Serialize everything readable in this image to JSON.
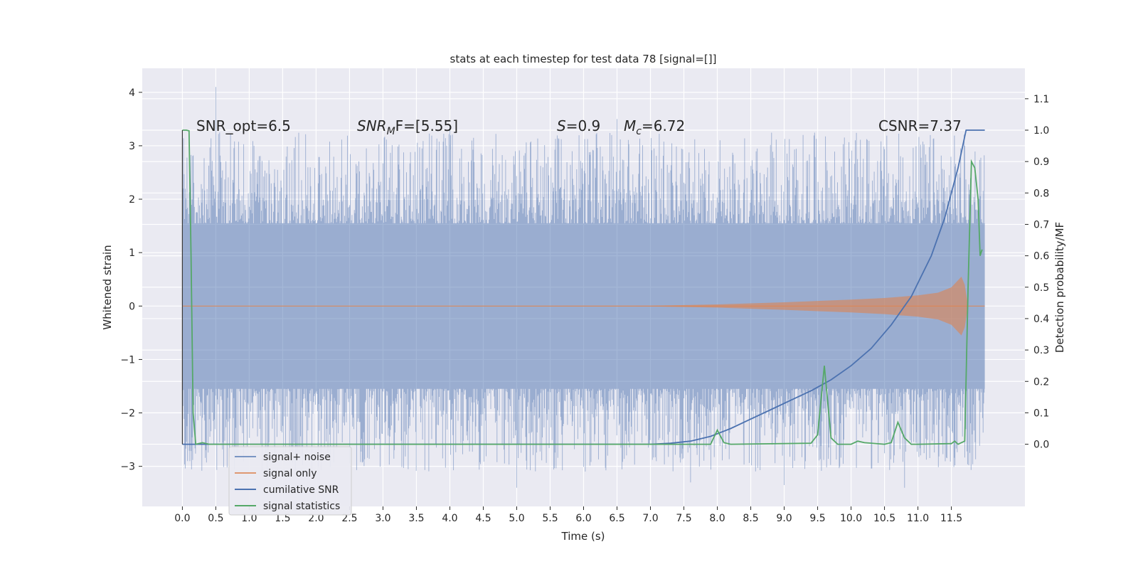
{
  "chart_data": {
    "type": "line",
    "title": "stats at each timestep for test data 78 [signal=[]]",
    "xlabel": "Time (s)",
    "ylabel_left": "Whitened strain",
    "ylabel_right": "Detection probability/MF",
    "xlim": [
      -0.6,
      12.6
    ],
    "ylim_left": [
      -3.75,
      4.45
    ],
    "ylim_right": [
      -0.198,
      1.197
    ],
    "xticks": [
      "0.0",
      "0.5",
      "1.0",
      "1.5",
      "2.0",
      "2.5",
      "3.0",
      "3.5",
      "4.0",
      "4.5",
      "5.0",
      "5.5",
      "6.0",
      "6.5",
      "7.0",
      "7.5",
      "8.0",
      "8.5",
      "9.0",
      "9.5",
      "10.0",
      "10.5",
      "11.0",
      "11.5"
    ],
    "yticks_left": [
      "4",
      "3",
      "2",
      "1",
      "0",
      "−1",
      "−2",
      "−3"
    ],
    "yticks_right": [
      "1.1",
      "1.0",
      "0.9",
      "0.8",
      "0.7",
      "0.6",
      "0.5",
      "0.4",
      "0.3",
      "0.2",
      "0.1",
      "0.0"
    ],
    "grid": true,
    "legend_position": "lower-left",
    "annotations": {
      "snr_opt": "SNR_opt=6.5",
      "snr_mf_main": "SNR",
      "snr_mf_sub": "M",
      "snr_mf_rest": "F=[5.55]",
      "s_main": "S",
      "s_rest": "=0.9",
      "mc_main": "M",
      "mc_sub": "c",
      "mc_rest": "=6.72",
      "csnr": "CSNR=7.37"
    },
    "series": [
      {
        "name": "signal+ noise",
        "axis": "left",
        "color": "#4c72b0",
        "opacity": 0.5,
        "x_range": [
          0.0,
          12.0
        ],
        "band_lower": -1.55,
        "band_upper": 1.55,
        "peak_max": [
          [
            0.5,
            4.1
          ],
          [
            4.0,
            3.4
          ],
          [
            6.5,
            3.5
          ],
          [
            11.7,
            3.0
          ]
        ],
        "peak_min": [
          [
            5.0,
            -3.4
          ],
          [
            7.6,
            -3.3
          ],
          [
            9.0,
            -3.35
          ],
          [
            10.8,
            -3.4
          ]
        ]
      },
      {
        "name": "signal only",
        "axis": "left",
        "color": "#dd8452",
        "opacity": 0.6,
        "x": [
          0.0,
          7.0,
          8.0,
          9.0,
          10.0,
          10.5,
          11.0,
          11.3,
          11.5,
          11.65,
          11.7,
          11.75,
          12.0
        ],
        "envelope": [
          0.0,
          0.005,
          0.03,
          0.07,
          0.12,
          0.15,
          0.2,
          0.25,
          0.35,
          0.55,
          0.4,
          0.0,
          0.0
        ]
      },
      {
        "name": "cumilative SNR",
        "axis": "right",
        "color": "#4c72b0",
        "x": [
          0.0,
          7.0,
          7.3,
          7.6,
          7.9,
          8.2,
          8.5,
          8.8,
          9.1,
          9.4,
          9.7,
          10.0,
          10.3,
          10.6,
          10.9,
          11.2,
          11.4,
          11.6,
          11.7,
          11.72,
          12.0
        ],
        "y": [
          0.0,
          0.0,
          0.003,
          0.01,
          0.025,
          0.05,
          0.08,
          0.11,
          0.14,
          0.17,
          0.205,
          0.25,
          0.305,
          0.38,
          0.47,
          0.6,
          0.72,
          0.88,
          0.98,
          1.0,
          1.0
        ]
      },
      {
        "name": "signal statistics",
        "axis": "right",
        "color": "#55a868",
        "x": [
          0.0,
          0.03,
          0.06,
          0.1,
          0.13,
          0.16,
          0.2,
          0.3,
          0.4,
          2.0,
          7.9,
          8.0,
          8.1,
          8.2,
          9.4,
          9.5,
          9.6,
          9.7,
          9.8,
          10.0,
          10.1,
          10.2,
          10.5,
          10.6,
          10.7,
          10.8,
          10.9,
          11.0,
          11.5,
          11.55,
          11.6,
          11.7,
          11.75,
          11.8,
          11.85,
          11.9,
          11.93,
          11.96
        ],
        "y": [
          1.0,
          1.0,
          1.0,
          0.998,
          0.6,
          0.1,
          0.0,
          0.005,
          0.0,
          0.0,
          0.0,
          0.045,
          0.005,
          0.0,
          0.003,
          0.03,
          0.25,
          0.02,
          0.0,
          0.0,
          0.01,
          0.005,
          0.0,
          0.005,
          0.07,
          0.02,
          0.0,
          0.0,
          0.002,
          0.01,
          0.0,
          0.01,
          0.5,
          0.9,
          0.88,
          0.78,
          0.6,
          0.62
        ]
      }
    ]
  }
}
